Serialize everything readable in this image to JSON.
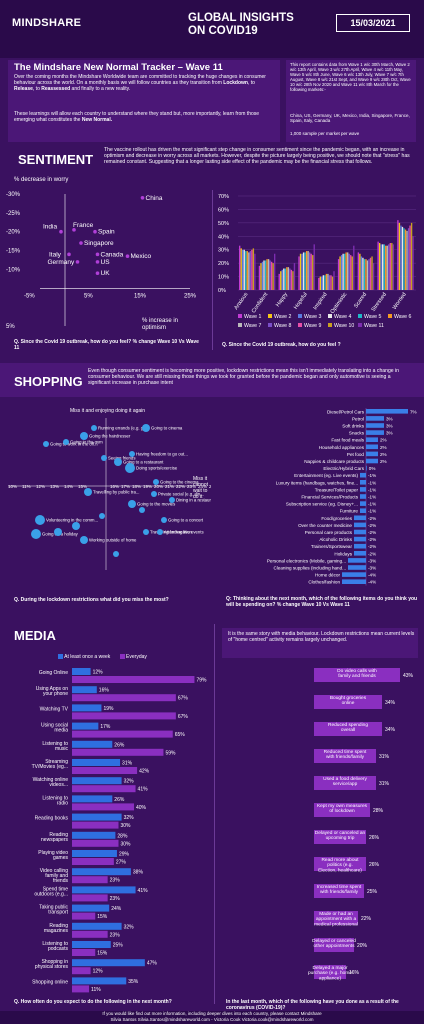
{
  "header": {
    "logo": "MINDSHARE",
    "title_line1": "GLOBAL INSIGHTS",
    "title_line2": "ON COVID19",
    "date": "15/03/2021"
  },
  "intro": {
    "title": "The Mindshare New Normal Tracker – Wave 11",
    "p1a": "Over the coming months the Mindshare Worldwide team are committed to tracking the huge changes in consumer behaviour across the world. On a monthly basis we will follow countries as they transition from ",
    "p1b": "Lockdown",
    "p1c": ", to ",
    "p1d": "Release",
    "p1e": ", to ",
    "p1f": "Reassessed",
    "p1g": " and finally to a new reality.",
    "p2a": "These learnings will allow each country to understand where they stand but, more importantly, learn from those emerging what constitutes the ",
    "p2b": "New Normal.",
    "right1": "This report contains data from Wave 1 w/c 30th March, Wave 2 w/c 13th April, Wave 3 w/c 27th April, Wave 4 w/c 11th May, Wave 5 w/c 8th June, Wave 6 w/c 13th July, Wave 7 w/c 7th August, Wave 8 w/c 21st Sept, and Wave 9 w/c 28th Oct, Wave 10 w/c 28th Nov 2020 and Wave 11 w/c 8th March for the following markets:-",
    "right2": "China, US, Germany, UK, Mexico, India, Singapore, France, Spain, Italy, Canada",
    "right3": "1,000 sample per market per wave"
  },
  "sentiment": {
    "title": "SENTIMENT",
    "text": "The vaccine rollout has driven the most significant step change in consumer sentiment since the pandemic began, with an increase in optimism and decrease in worry across all markets. However, despite the picture largely being positive, we should note that \"stress\" has remained constant. Suggesting that a longer lasting side effect of the pandemic may be the financial stress that follows.",
    "scatter_ylabel": "% decrease in worry",
    "scatter_xlabel_1": "% increase in",
    "scatter_xlabel_2": "optimism",
    "q1": "Q. Since the Covid 19 outbreak, how do you feel? % change Wave 10 Vs Wave 11",
    "q2": "Q. Since the Covid 19 outbreak, how do you feel ?",
    "scatter_yticks": [
      "-30%",
      "-25%",
      "-20%",
      "-15%",
      "-10%",
      "-5%",
      "5%"
    ],
    "scatter_xticks": [
      "-5%",
      "5%",
      "15%",
      "25%"
    ],
    "scatter_points": [
      {
        "label": "China",
        "x": 15.5,
        "y": -29
      },
      {
        "label": "India",
        "x": -0.8,
        "y": -20
      },
      {
        "label": "France",
        "x": 1.8,
        "y": -20.5
      },
      {
        "label": "Spain",
        "x": 6,
        "y": -20
      },
      {
        "label": "Singapore",
        "x": 3.2,
        "y": -17
      },
      {
        "label": "Italy",
        "x": 0.8,
        "y": -14
      },
      {
        "label": "Canada",
        "x": 6.5,
        "y": -14
      },
      {
        "label": "Mexico",
        "x": 12.5,
        "y": -13.5
      },
      {
        "label": "Germany",
        "x": 2.5,
        "y": -12
      },
      {
        "label": "US",
        "x": 6.5,
        "y": -12
      },
      {
        "label": "UK",
        "x": 6.5,
        "y": -9
      }
    ],
    "bar_yticks": [
      "70%",
      "60%",
      "50%",
      "40%",
      "30%",
      "20%",
      "10%",
      "0%"
    ],
    "bar_categories": [
      "Anxious",
      "Confident",
      "Happy",
      "Hopeful",
      "Inspired",
      "Optimistic",
      "Scared",
      "Stressed",
      "Worried"
    ],
    "legend": [
      "Wave 1",
      "Wave 2",
      "Wave 3",
      "Wave 4",
      "Wave 5",
      "Wave 6",
      "Wave 7",
      "Wave 8",
      "Wave 9",
      "Wave 10",
      "Wave 11"
    ]
  },
  "chart_data": [
    {
      "type": "scatter",
      "title": "",
      "xlabel": "% increase in optimism",
      "ylabel": "% decrease in worry",
      "xlim": [
        -5,
        25
      ],
      "ylim": [
        -30,
        5
      ],
      "points": [
        {
          "label": "China",
          "x": 15.5,
          "y": -29
        },
        {
          "label": "India",
          "x": -0.8,
          "y": -20
        },
        {
          "label": "France",
          "x": 1.8,
          "y": -20.5
        },
        {
          "label": "Spain",
          "x": 6,
          "y": -20
        },
        {
          "label": "Singapore",
          "x": 3.2,
          "y": -17
        },
        {
          "label": "Italy",
          "x": 0.8,
          "y": -14
        },
        {
          "label": "Canada",
          "x": 6.5,
          "y": -14
        },
        {
          "label": "Mexico",
          "x": 12.5,
          "y": -13.5
        },
        {
          "label": "Germany",
          "x": 2.5,
          "y": -12
        },
        {
          "label": "US",
          "x": 6.5,
          "y": -12
        },
        {
          "label": "UK",
          "x": 6.5,
          "y": -9
        }
      ]
    },
    {
      "type": "bar",
      "title": "",
      "ylim": [
        0,
        70
      ],
      "categories": [
        "Anxious",
        "Confident",
        "Happy",
        "Hopeful",
        "Inspired",
        "Optimistic",
        "Scared",
        "Stressed",
        "Worried"
      ],
      "series": [
        {
          "name": "Wave 1",
          "values": [
            33,
            18,
            12,
            25,
            9,
            23,
            28,
            36,
            52
          ]
        },
        {
          "name": "Wave 2",
          "values": [
            31,
            20,
            14,
            27,
            10,
            25,
            27,
            35,
            50
          ]
        },
        {
          "name": "Wave 3",
          "values": [
            30,
            21,
            15,
            27,
            10,
            26,
            25,
            34,
            48
          ]
        },
        {
          "name": "Wave 4",
          "values": [
            30,
            22,
            16,
            28,
            11,
            27,
            24,
            34,
            47
          ]
        },
        {
          "name": "Wave 5",
          "values": [
            29,
            22,
            16,
            28,
            11,
            27,
            23,
            34,
            46
          ]
        },
        {
          "name": "Wave 6",
          "values": [
            29,
            23,
            17,
            29,
            12,
            28,
            23,
            33,
            45
          ]
        },
        {
          "name": "Wave 7",
          "values": [
            28,
            23,
            17,
            29,
            12,
            28,
            22,
            33,
            44
          ]
        },
        {
          "name": "Wave 8",
          "values": [
            29,
            22,
            16,
            28,
            11,
            27,
            23,
            34,
            46
          ]
        },
        {
          "name": "Wave 9",
          "values": [
            30,
            21,
            15,
            27,
            11,
            26,
            24,
            35,
            48
          ]
        },
        {
          "name": "Wave 10",
          "values": [
            31,
            20,
            14,
            26,
            10,
            25,
            25,
            35,
            50
          ]
        },
        {
          "name": "Wave 11",
          "values": [
            27,
            27,
            20,
            34,
            14,
            33,
            20,
            34,
            40
          ]
        }
      ]
    },
    {
      "type": "bar",
      "title": "",
      "categories": [
        "Diesel/Petrol Cars",
        "Petrol",
        "Soft drinks",
        "Snacks",
        "Fast food meals",
        "Household appliances",
        "Pet food",
        "Nappies & childcare products",
        "Electric/Hybrid Cars",
        "Entertainment (eg. Live events)",
        "Luxury items (handbags, watches, fine...",
        "Treasure/Toilet paper",
        "Financial Services/Products",
        "Subscription service (eg. Disney+...",
        "Furniture",
        "Food/groceries",
        "Over the counter medicine",
        "Personal care products",
        "Alcoholic Drinks",
        "Trainers/Sportswear",
        "Holidays",
        "Personal electronics (Mobile, gaming...",
        "Cleaning supplies (including hand...",
        "Home décor",
        "Clothes/fashion"
      ],
      "values": [
        7,
        3,
        3,
        3,
        2,
        2,
        2,
        2,
        0,
        -1,
        -1,
        -1,
        -1,
        -1,
        -1,
        -2,
        -2,
        -2,
        -2,
        -2,
        -2,
        -3,
        -3,
        -4,
        -4
      ]
    },
    {
      "type": "bar",
      "title": "",
      "categories": [
        "Going Online",
        "Using Apps on your phone",
        "Watching TV",
        "Using social media",
        "Listening to music",
        "Streaming TV/Movies (eg...",
        "Watching online videos...",
        "Listening to radio",
        "Reading books",
        "Reading newspapers",
        "Playing video games",
        "Video calling family and friends",
        "Spend time outdoors (e.g...",
        "Taking public transport",
        "Reading magazines",
        "Listening to podcasts",
        "Shopping in physical stores",
        "Shopping online"
      ],
      "series": [
        {
          "name": "At least once a week",
          "values": [
            12,
            16,
            19,
            17,
            26,
            31,
            32,
            26,
            32,
            28,
            29,
            38,
            41,
            24,
            32,
            25,
            47,
            35
          ]
        },
        {
          "name": "Everyday",
          "values": [
            79,
            67,
            67,
            65,
            59,
            42,
            41,
            40,
            30,
            30,
            27,
            23,
            23,
            15,
            23,
            15,
            12,
            11
          ]
        }
      ]
    },
    {
      "type": "bar",
      "title": "",
      "categories": [
        "Do video calls with family and friends",
        "Bought groceries online",
        "Reduced spending overall",
        "Reduced time spent with friends/family",
        "Used a food delivery service/app",
        "Kept my own measures of lockdown",
        "Delayed or canceled an upcoming trip",
        "Read more about politics (e.g. Election, healthcare)",
        "Increased time spent with friends/family",
        "Made or had an appointment with a medical professional",
        "Delayed or canceled other appointments",
        "Delayed a major purchase (e.g. home appliance)"
      ],
      "values": [
        43,
        34,
        34,
        31,
        31,
        28,
        26,
        26,
        25,
        22,
        20,
        16
      ]
    }
  ],
  "shopping": {
    "title": "SHOPPING",
    "text": "Even though consumer sentiment is becoming more positive, lockdown restrictions mean this isn't immediately translating into a change in consumer behaviour. We are still missing those things we took for granted before the pandemic began and only automotive is seeing a significant increase in purchase intent",
    "bubble_top": "Miss it and enjoying doing it again",
    "bubble_right_1": "Miss it",
    "bubble_right_2": "cannot",
    "bubble_right_3": "wait to",
    "bubble_right_4": "do it",
    "bubble_xticks": [
      "10%",
      "11%",
      "12%",
      "13%",
      "14%",
      "15%",
      "16%",
      "17%",
      "18%",
      "19%",
      "20%",
      "21%",
      "22%",
      "23%",
      "24%",
      "25%"
    ],
    "q_left": "Q. During the lockdown restrictions what did you miss the most?",
    "q_right": "Q: Thinking  about the next month,  which of the following items do you think you will be spending on? % change Wave 10 Vs Wave 11",
    "bubbles": [
      "Running errands (e.g. grocery shopping, doing laundry)",
      "Going the hairdresser",
      "Going to work in the office/company",
      "Going to the gym",
      "Going to cinema",
      "Seeing friends",
      "Going to a restaurant",
      "Having freedom to go out as I please",
      "Doing sports/exercise",
      "Travelling by public transport",
      "Going to the cinema",
      "Private social (e.g. dining at home)",
      "Dining in a restaurant / bar",
      "Going to the movies",
      "Going to a concert",
      "Volunteering in the community",
      "Going on a holiday",
      "Travelling for vacation",
      "Attending live events",
      "Working outside of home"
    ],
    "spend_labels": [
      "Diesel/Petrol Cars",
      "Petrol",
      "Soft drinks",
      "Snacks",
      "Fast food meals",
      "Household appliances",
      "Pet food",
      "Nappies & childcare products",
      "Electric/Hybrid Cars",
      "Entertainment (eg. Live events)",
      "Luxury items (handbags, watches, fine...",
      "Treasure/Toilet paper",
      "Financial Services/Products",
      "Subscription service (eg. Disney+...",
      "Furniture",
      "Food/groceries",
      "Over the counter medicine",
      "Personal care products",
      "Alcoholic Drinks",
      "Trainers/Sportswear",
      "Holidays",
      "Personal electronics (Mobile, gaming...",
      "Cleaning supplies (including hand...",
      "Home décor",
      "Clothes/fashion"
    ],
    "spend_value_labels": [
      "7%",
      "3%",
      "3%",
      "3%",
      "2%",
      "2%",
      "2%",
      "2%",
      "0%",
      "-1%",
      "-1%",
      "-1%",
      "-1%",
      "-1%",
      "-1%",
      "-2%",
      "-2%",
      "-2%",
      "-2%",
      "-2%",
      "-2%",
      "-3%",
      "-3%",
      "-4%",
      "-4%"
    ]
  },
  "media": {
    "title": "MEDIA",
    "legend1": "At least once a week",
    "legend2": "Everyday",
    "text": "It is the same story with media behaviour. Lockdown restrictions mean  current levels of \"home centred\" activity remains largely unchanged.",
    "q_left": "Q. How often do you expect to do the following in the next month?",
    "q_right": "In the last month, which of the following have you done as a result of the coronavirus (COVID-19)?"
  },
  "footer": {
    "line1": "If you would like find out more information, including deeper dives into each country, please contact Mindshare",
    "line2": "Silvia Santos Silvia.Santos@mindshareworld.com  -  Victoria Cook Victoria.cook@mindshareworld.com"
  }
}
